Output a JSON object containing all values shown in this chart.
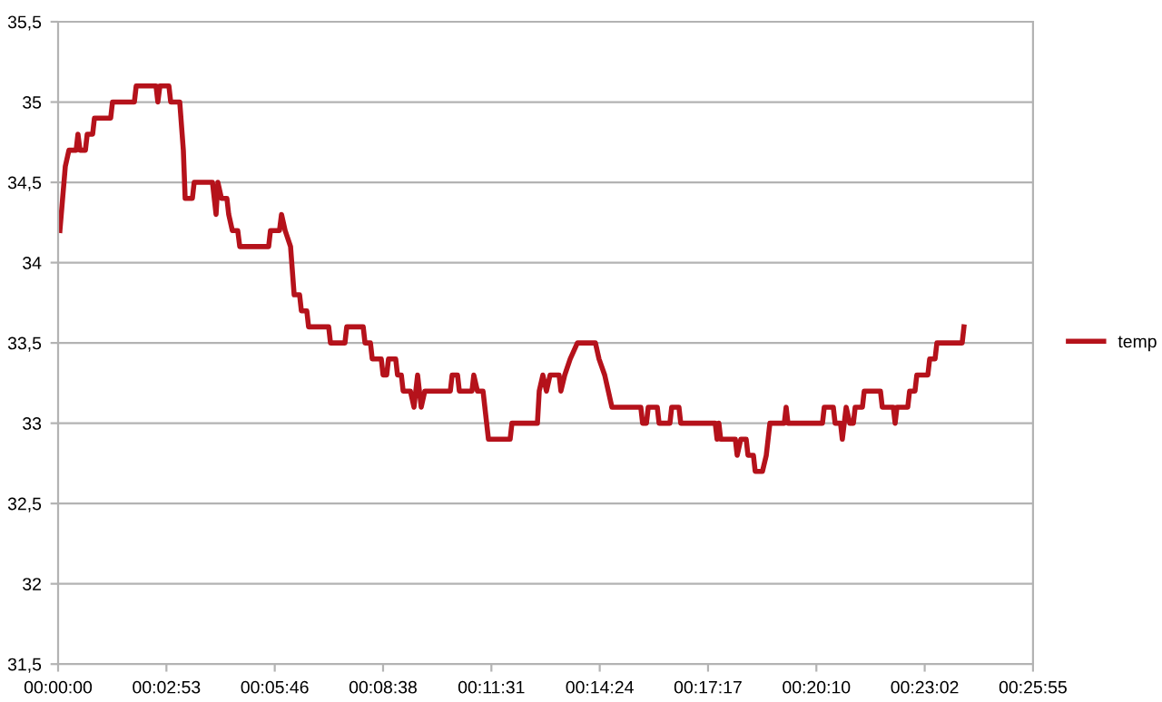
{
  "chart_data": {
    "type": "line",
    "legend": "right",
    "grid": "y",
    "marker": "none",
    "line_style": "solid",
    "xlim": [
      0,
      0.432
    ],
    "xticks": [
      {
        "value": 0,
        "label": "00:00:00"
      },
      {
        "value": 0.048,
        "label": "00:02:53"
      },
      {
        "value": 0.096,
        "label": "00:05:46"
      },
      {
        "value": 0.144,
        "label": "00:08:38"
      },
      {
        "value": 0.192,
        "label": "00:11:31"
      },
      {
        "value": 0.24,
        "label": "00:14:24"
      },
      {
        "value": 0.288,
        "label": "00:17:17"
      },
      {
        "value": 0.336,
        "label": "00:20:10"
      },
      {
        "value": 0.384,
        "label": "00:23:02"
      },
      {
        "value": 0.432,
        "label": "00:25:55"
      }
    ],
    "ylim": [
      31.5,
      35.5
    ],
    "yticks": [
      {
        "value": 31.5,
        "label": "31,5"
      },
      32,
      {
        "value": 32.5,
        "label": "32,5"
      },
      33,
      {
        "value": 33.5,
        "label": "33,5"
      },
      34,
      {
        "value": 34.5,
        "label": "34,5"
      },
      35,
      {
        "value": 35.5,
        "label": "35,5"
      }
    ],
    "series": [
      {
        "name": "temp",
        "color": "#b5121b",
        "x": [
          0.0008,
          0.0032,
          0.0048,
          0.008,
          0.0088,
          0.0097,
          0.0121,
          0.0129,
          0.0153,
          0.0161,
          0.0233,
          0.0241,
          0.0338,
          0.0346,
          0.0434,
          0.0442,
          0.0451,
          0.0491,
          0.0499,
          0.0539,
          0.0555,
          0.0563,
          0.0595,
          0.0603,
          0.0684,
          0.07,
          0.0708,
          0.0724,
          0.0748,
          0.0756,
          0.0772,
          0.0796,
          0.0805,
          0.0933,
          0.0941,
          0.0981,
          0.099,
          0.1006,
          0.103,
          0.1046,
          0.107,
          0.1078,
          0.1102,
          0.111,
          0.1199,
          0.1207,
          0.1271,
          0.1279,
          0.1352,
          0.136,
          0.1384,
          0.1392,
          0.1432,
          0.144,
          0.1456,
          0.1464,
          0.1496,
          0.1504,
          0.1521,
          0.1529,
          0.1561,
          0.1577,
          0.1593,
          0.1609,
          0.1625,
          0.1738,
          0.1746,
          0.177,
          0.1778,
          0.1834,
          0.1842,
          0.1858,
          0.1883,
          0.1899,
          0.1907,
          0.2003,
          0.2011,
          0.2124,
          0.2132,
          0.2148,
          0.2164,
          0.218,
          0.222,
          0.2228,
          0.2245,
          0.2269,
          0.2301,
          0.2381,
          0.2397,
          0.2422,
          0.2438,
          0.2454,
          0.2582,
          0.259,
          0.2607,
          0.2615,
          0.2655,
          0.2663,
          0.2711,
          0.2719,
          0.2751,
          0.2759,
          0.2912,
          0.292,
          0.2928,
          0.2936,
          0.3001,
          0.3009,
          0.3025,
          0.3049,
          0.3057,
          0.3081,
          0.3089,
          0.3121,
          0.3138,
          0.3154,
          0.3218,
          0.3226,
          0.3234,
          0.3387,
          0.3395,
          0.3435,
          0.3443,
          0.3467,
          0.3475,
          0.3492,
          0.3508,
          0.3524,
          0.3532,
          0.3564,
          0.3572,
          0.3644,
          0.3652,
          0.3701,
          0.3709,
          0.3717,
          0.3765,
          0.3773,
          0.3797,
          0.3805,
          0.3854,
          0.3862,
          0.3886,
          0.3894,
          0.4006,
          0.4014
        ],
        "values": [
          34.2,
          34.6,
          34.7,
          34.7,
          34.8,
          34.7,
          34.7,
          34.8,
          34.8,
          34.9,
          34.9,
          35.0,
          35.0,
          35.1,
          35.1,
          35.0,
          35.1,
          35.1,
          35.0,
          35.0,
          34.7,
          34.4,
          34.4,
          34.5,
          34.5,
          34.3,
          34.5,
          34.4,
          34.4,
          34.3,
          34.2,
          34.2,
          34.1,
          34.1,
          34.2,
          34.2,
          34.3,
          34.2,
          34.1,
          33.8,
          33.8,
          33.7,
          33.7,
          33.6,
          33.6,
          33.5,
          33.5,
          33.6,
          33.6,
          33.5,
          33.5,
          33.4,
          33.4,
          33.3,
          33.3,
          33.4,
          33.4,
          33.3,
          33.3,
          33.2,
          33.2,
          33.1,
          33.3,
          33.1,
          33.2,
          33.2,
          33.3,
          33.3,
          33.2,
          33.2,
          33.3,
          33.2,
          33.2,
          33.0,
          32.9,
          32.9,
          33.0,
          33.0,
          33.2,
          33.3,
          33.2,
          33.3,
          33.3,
          33.2,
          33.3,
          33.4,
          33.5,
          33.5,
          33.4,
          33.3,
          33.2,
          33.1,
          33.1,
          33.0,
          33.0,
          33.1,
          33.1,
          33.0,
          33.0,
          33.1,
          33.1,
          33.0,
          33.0,
          32.9,
          33.0,
          32.9,
          32.9,
          32.8,
          32.9,
          32.9,
          32.8,
          32.8,
          32.7,
          32.7,
          32.8,
          33.0,
          33.0,
          33.1,
          33.0,
          33.0,
          33.1,
          33.1,
          33.0,
          33.0,
          32.9,
          33.1,
          33.0,
          33.0,
          33.1,
          33.1,
          33.2,
          33.2,
          33.1,
          33.1,
          33.0,
          33.1,
          33.1,
          33.2,
          33.2,
          33.3,
          33.3,
          33.4,
          33.4,
          33.5,
          33.5,
          33.6
        ]
      }
    ]
  }
}
